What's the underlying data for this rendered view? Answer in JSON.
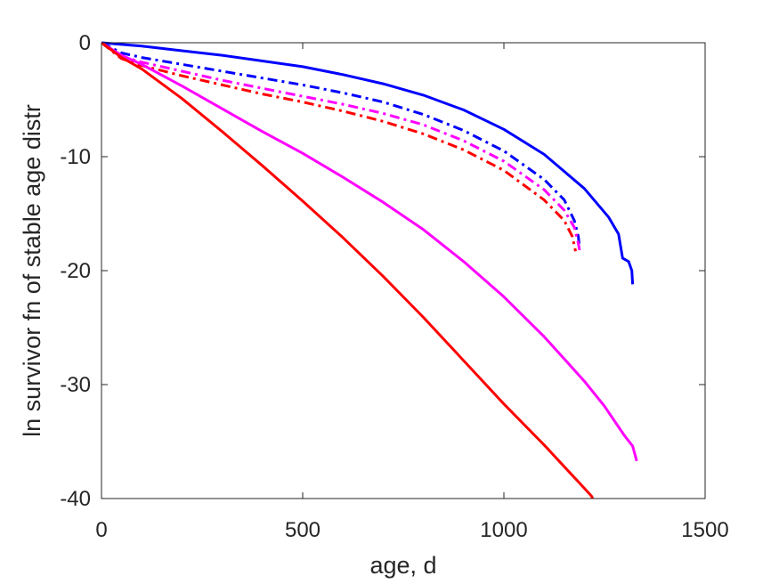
{
  "chart_data": {
    "type": "line",
    "title": "",
    "xlabel": "age, d",
    "ylabel": "ln survivor fn of stable age distr",
    "xlim": [
      0,
      1500
    ],
    "ylim": [
      -40,
      0
    ],
    "xticks": [
      0,
      500,
      1000,
      1500
    ],
    "yticks": [
      0,
      -10,
      -20,
      -30,
      -40
    ],
    "xtick_labels": [
      "0",
      "500",
      "1000",
      "1500"
    ],
    "ytick_labels": [
      "0",
      "-10",
      "-20",
      "-30",
      "-40"
    ],
    "grid": false,
    "legend": "none",
    "series": [
      {
        "color": "#0000ff",
        "style": "solid",
        "points": [
          [
            0,
            0
          ],
          [
            100,
            -0.3
          ],
          [
            200,
            -0.7
          ],
          [
            300,
            -1.1
          ],
          [
            400,
            -1.6
          ],
          [
            500,
            -2.1
          ],
          [
            600,
            -2.8
          ],
          [
            700,
            -3.6
          ],
          [
            800,
            -4.6
          ],
          [
            900,
            -5.9
          ],
          [
            1000,
            -7.6
          ],
          [
            1100,
            -9.8
          ],
          [
            1200,
            -12.8
          ],
          [
            1260,
            -15.3
          ],
          [
            1285,
            -16.8
          ],
          [
            1295,
            -18.9
          ],
          [
            1310,
            -19.2
          ],
          [
            1318,
            -20.0
          ],
          [
            1320,
            -21.2
          ]
        ]
      },
      {
        "color": "#0000ff",
        "style": "dashdot",
        "points": [
          [
            0,
            0
          ],
          [
            50,
            -0.9
          ],
          [
            100,
            -1.3
          ],
          [
            200,
            -1.9
          ],
          [
            300,
            -2.5
          ],
          [
            400,
            -3.1
          ],
          [
            500,
            -3.7
          ],
          [
            600,
            -4.4
          ],
          [
            700,
            -5.2
          ],
          [
            800,
            -6.3
          ],
          [
            900,
            -7.7
          ],
          [
            1000,
            -9.5
          ],
          [
            1100,
            -12.0
          ],
          [
            1150,
            -13.8
          ],
          [
            1175,
            -15.6
          ],
          [
            1185,
            -17.0
          ],
          [
            1188,
            -18.0
          ]
        ]
      },
      {
        "color": "#ff00ff",
        "style": "dashdot",
        "points": [
          [
            0,
            0
          ],
          [
            50,
            -1.2
          ],
          [
            100,
            -1.7
          ],
          [
            200,
            -2.5
          ],
          [
            300,
            -3.3
          ],
          [
            400,
            -4.0
          ],
          [
            500,
            -4.7
          ],
          [
            600,
            -5.4
          ],
          [
            700,
            -6.2
          ],
          [
            800,
            -7.2
          ],
          [
            900,
            -8.6
          ],
          [
            1000,
            -10.4
          ],
          [
            1100,
            -12.9
          ],
          [
            1150,
            -14.7
          ],
          [
            1175,
            -16.2
          ],
          [
            1185,
            -17.6
          ],
          [
            1188,
            -18.2
          ]
        ]
      },
      {
        "color": "#ff0000",
        "style": "dashdot",
        "points": [
          [
            0,
            0
          ],
          [
            50,
            -1.4
          ],
          [
            100,
            -2.0
          ],
          [
            200,
            -2.9
          ],
          [
            300,
            -3.7
          ],
          [
            400,
            -4.5
          ],
          [
            500,
            -5.2
          ],
          [
            600,
            -6.0
          ],
          [
            700,
            -6.9
          ],
          [
            800,
            -8.0
          ],
          [
            900,
            -9.4
          ],
          [
            1000,
            -11.2
          ],
          [
            1100,
            -13.8
          ],
          [
            1150,
            -15.6
          ],
          [
            1170,
            -17.0
          ],
          [
            1178,
            -18.3
          ]
        ]
      },
      {
        "color": "#ff00ff",
        "style": "solid",
        "points": [
          [
            0,
            0
          ],
          [
            50,
            -1.1
          ],
          [
            100,
            -1.9
          ],
          [
            200,
            -3.8
          ],
          [
            300,
            -5.8
          ],
          [
            400,
            -7.8
          ],
          [
            500,
            -9.7
          ],
          [
            600,
            -11.8
          ],
          [
            700,
            -14.0
          ],
          [
            800,
            -16.4
          ],
          [
            900,
            -19.2
          ],
          [
            1000,
            -22.3
          ],
          [
            1100,
            -25.8
          ],
          [
            1200,
            -29.7
          ],
          [
            1250,
            -31.9
          ],
          [
            1300,
            -34.5
          ],
          [
            1320,
            -35.4
          ],
          [
            1330,
            -36.7
          ]
        ]
      },
      {
        "color": "#ff0000",
        "style": "solid",
        "points": [
          [
            0,
            0
          ],
          [
            50,
            -1.3
          ],
          [
            100,
            -2.3
          ],
          [
            200,
            -4.9
          ],
          [
            300,
            -7.8
          ],
          [
            400,
            -10.8
          ],
          [
            500,
            -13.9
          ],
          [
            600,
            -17.1
          ],
          [
            700,
            -20.5
          ],
          [
            800,
            -24.1
          ],
          [
            900,
            -27.9
          ],
          [
            1000,
            -31.7
          ],
          [
            1100,
            -35.3
          ],
          [
            1150,
            -37.2
          ],
          [
            1200,
            -39.1
          ],
          [
            1218,
            -39.8
          ],
          [
            1230,
            -40.8
          ],
          [
            1240,
            -42.1
          ],
          [
            1250,
            -42.1
          ]
        ]
      }
    ]
  }
}
